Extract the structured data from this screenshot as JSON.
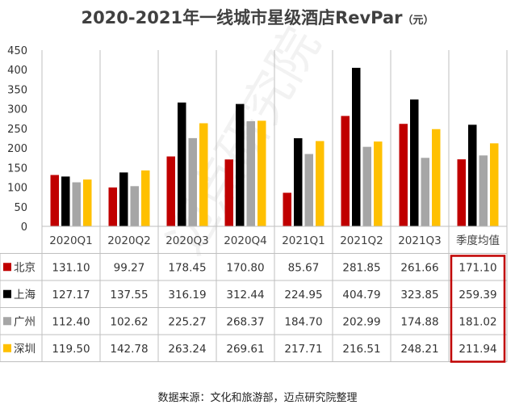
{
  "title": "2020-2021年一线城市星级酒店RevPar",
  "title_unit": "（元）",
  "source": "数据来源：文化和旅游部，迈点研究院整理",
  "watermark": "迈点研究院",
  "chart_data": {
    "type": "bar",
    "title": "2020-2021年一线城市星级酒店RevPar（元）",
    "categories": [
      "2020Q1",
      "2020Q2",
      "2020Q3",
      "2020Q4",
      "2021Q1",
      "2021Q2",
      "2021Q3",
      "季度均值"
    ],
    "ylim": [
      0,
      450
    ],
    "yticks": [
      0,
      50,
      100,
      150,
      200,
      250,
      300,
      350,
      400,
      450
    ],
    "grid": false,
    "legend": "table-left",
    "series": [
      {
        "name": "北京",
        "color": "#c00000",
        "values": [
          131.1,
          99.27,
          178.45,
          170.8,
          85.67,
          281.85,
          261.66,
          171.1
        ]
      },
      {
        "name": "上海",
        "color": "#000000",
        "values": [
          127.17,
          137.55,
          316.19,
          312.44,
          224.95,
          404.79,
          323.85,
          259.39
        ]
      },
      {
        "name": "广州",
        "color": "#a6a6a6",
        "values": [
          112.4,
          102.62,
          225.27,
          268.37,
          184.7,
          202.99,
          174.88,
          181.02
        ]
      },
      {
        "name": "深圳",
        "color": "#ffc000",
        "values": [
          119.5,
          142.78,
          263.24,
          269.61,
          217.71,
          216.51,
          248.21,
          211.94
        ]
      }
    ],
    "highlight_column": "季度均值",
    "highlight_color": "#c00000"
  }
}
